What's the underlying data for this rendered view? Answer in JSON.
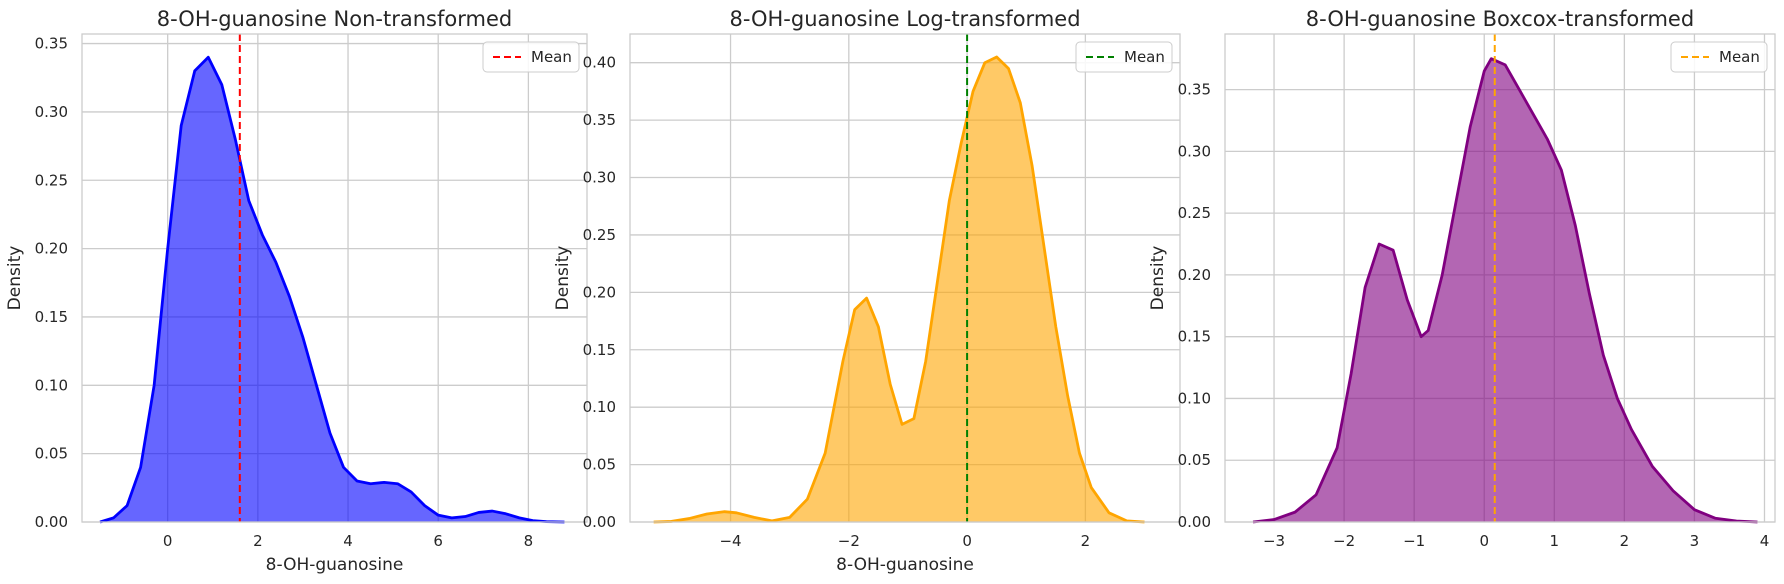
{
  "chart_data": [
    {
      "type": "area",
      "title": "8-OH-guanosine Non-transformed",
      "xlabel": "8-OH-guanosine",
      "ylabel": "Density",
      "xlim": [
        -1.9,
        9.3
      ],
      "ylim": [
        0,
        0.357
      ],
      "xticks": [
        0,
        2,
        4,
        6,
        8
      ],
      "yticks": [
        0.0,
        0.05,
        0.1,
        0.15,
        0.2,
        0.25,
        0.3,
        0.35
      ],
      "ytick_labels": [
        "0.00",
        "0.05",
        "0.10",
        "0.15",
        "0.20",
        "0.25",
        "0.30",
        "0.35"
      ],
      "grid": true,
      "fill_color": "#0000ff",
      "line_color": "#0000ff",
      "mean": 1.6,
      "mean_color": "#ff0000",
      "legend": {
        "label": "Mean",
        "placement": "top-right"
      },
      "series": [
        {
          "x": [
            -1.5,
            -1.2,
            -0.9,
            -0.6,
            -0.3,
            0,
            0.3,
            0.6,
            0.9,
            1.2,
            1.5,
            1.8,
            2.1,
            2.4,
            2.7,
            3.0,
            3.3,
            3.6,
            3.9,
            4.2,
            4.5,
            4.8,
            5.1,
            5.4,
            5.7,
            6.0,
            6.3,
            6.6,
            6.9,
            7.2,
            7.5,
            7.8,
            8.1,
            8.4,
            8.8
          ],
          "y": [
            0.0,
            0.003,
            0.012,
            0.04,
            0.1,
            0.2,
            0.29,
            0.33,
            0.34,
            0.32,
            0.28,
            0.235,
            0.21,
            0.19,
            0.165,
            0.135,
            0.1,
            0.065,
            0.04,
            0.03,
            0.028,
            0.029,
            0.028,
            0.022,
            0.012,
            0.005,
            0.003,
            0.004,
            0.007,
            0.008,
            0.006,
            0.003,
            0.001,
            0.0003,
            0.0
          ]
        }
      ]
    },
    {
      "type": "area",
      "title": "8-OH-guanosine Log-transformed",
      "xlabel": "8-OH-guanosine",
      "ylabel": "Density",
      "xlim": [
        -5.7,
        3.6
      ],
      "ylim": [
        0,
        0.425
      ],
      "xticks": [
        -4,
        -2,
        0,
        2
      ],
      "xtick_labels": [
        "−4",
        "−2",
        "0",
        "2"
      ],
      "yticks": [
        0.0,
        0.05,
        0.1,
        0.15,
        0.2,
        0.25,
        0.3,
        0.35,
        0.4
      ],
      "ytick_labels": [
        "0.00",
        "0.05",
        "0.10",
        "0.15",
        "0.20",
        "0.25",
        "0.30",
        "0.35",
        "0.40"
      ],
      "grid": true,
      "fill_color": "#ffa500",
      "line_color": "#ffa500",
      "mean": 0.0,
      "mean_color": "#008000",
      "legend": {
        "label": "Mean",
        "placement": "top-right"
      },
      "series": [
        {
          "x": [
            -5.3,
            -5.0,
            -4.7,
            -4.4,
            -4.1,
            -3.9,
            -3.6,
            -3.3,
            -3.0,
            -2.7,
            -2.4,
            -2.1,
            -1.9,
            -1.7,
            -1.5,
            -1.3,
            -1.1,
            -0.9,
            -0.7,
            -0.5,
            -0.3,
            -0.1,
            0.1,
            0.3,
            0.5,
            0.7,
            0.9,
            1.1,
            1.3,
            1.5,
            1.7,
            1.9,
            2.1,
            2.4,
            2.7,
            3.0
          ],
          "y": [
            0.0,
            0.0005,
            0.003,
            0.007,
            0.009,
            0.008,
            0.004,
            0.001,
            0.004,
            0.02,
            0.06,
            0.14,
            0.185,
            0.195,
            0.17,
            0.12,
            0.085,
            0.09,
            0.14,
            0.21,
            0.28,
            0.33,
            0.375,
            0.4,
            0.405,
            0.395,
            0.365,
            0.31,
            0.24,
            0.17,
            0.11,
            0.06,
            0.03,
            0.008,
            0.001,
            0.0
          ]
        }
      ]
    },
    {
      "type": "area",
      "title": "8-OH-guanosine Boxcox-transformed",
      "xlabel": "",
      "ylabel": "Density",
      "xlim": [
        -3.7,
        4.15
      ],
      "ylim": [
        0,
        0.395
      ],
      "xticks": [
        -3,
        -2,
        -1,
        0,
        1,
        2,
        3,
        4
      ],
      "xtick_labels": [
        "−3",
        "−2",
        "−1",
        "0",
        "1",
        "2",
        "3",
        "4"
      ],
      "yticks": [
        0.0,
        0.05,
        0.1,
        0.15,
        0.2,
        0.25,
        0.3,
        0.35
      ],
      "ytick_labels": [
        "0.00",
        "0.05",
        "0.10",
        "0.15",
        "0.20",
        "0.25",
        "0.30",
        "0.35"
      ],
      "grid": true,
      "fill_color": "#800080",
      "line_color": "#800080",
      "mean": 0.15,
      "mean_color": "#ffa500",
      "legend": {
        "label": "Mean",
        "placement": "top-right"
      },
      "series": [
        {
          "x": [
            -3.3,
            -3.0,
            -2.7,
            -2.4,
            -2.1,
            -1.9,
            -1.7,
            -1.5,
            -1.3,
            -1.1,
            -0.9,
            -0.8,
            -0.6,
            -0.4,
            -0.2,
            0.0,
            0.1,
            0.3,
            0.5,
            0.7,
            0.9,
            1.1,
            1.3,
            1.5,
            1.7,
            1.9,
            2.1,
            2.4,
            2.7,
            3.0,
            3.3,
            3.6,
            3.9
          ],
          "y": [
            0.0,
            0.002,
            0.008,
            0.022,
            0.06,
            0.12,
            0.19,
            0.225,
            0.22,
            0.18,
            0.15,
            0.155,
            0.2,
            0.26,
            0.32,
            0.365,
            0.375,
            0.37,
            0.35,
            0.33,
            0.31,
            0.285,
            0.24,
            0.185,
            0.135,
            0.1,
            0.075,
            0.045,
            0.025,
            0.01,
            0.003,
            0.0008,
            0.0
          ]
        }
      ]
    }
  ]
}
